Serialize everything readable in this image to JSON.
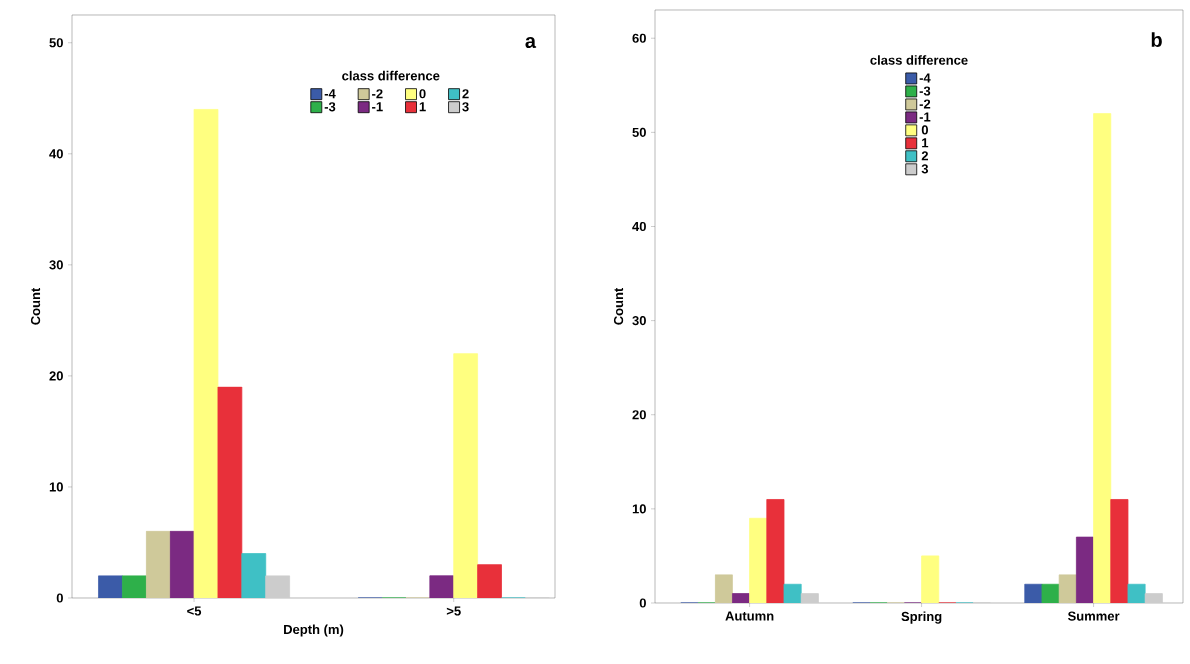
{
  "chart_data": [
    {
      "type": "bar",
      "annotations": [
        "a"
      ],
      "xlabel": "Depth (m)",
      "ylabel": "Count",
      "legend_title": "class difference",
      "legend": "top right",
      "categories": [
        "<5",
        ">5"
      ],
      "series": [
        {
          "name": "-4",
          "color": "#3b5ba8",
          "values": [
            2,
            0
          ]
        },
        {
          "name": "-3",
          "color": "#2eb04a",
          "values": [
            2,
            0
          ]
        },
        {
          "name": "-2",
          "color": "#cfc99a",
          "values": [
            6,
            0
          ]
        },
        {
          "name": "-1",
          "color": "#7b2a82",
          "values": [
            6,
            2
          ]
        },
        {
          "name": "0",
          "color": "#ffff80",
          "values": [
            44,
            22
          ]
        },
        {
          "name": "1",
          "color": "#e8303a",
          "values": [
            19,
            3
          ]
        },
        {
          "name": "2",
          "color": "#3fc0c5",
          "values": [
            4,
            0
          ]
        },
        {
          "name": "3",
          "color": "#cccccc",
          "values": [
            2,
            0
          ]
        }
      ],
      "ylim": [
        0,
        52.5
      ],
      "yticks": [
        0,
        10,
        20,
        30,
        40,
        50
      ],
      "grid": false
    },
    {
      "type": "bar",
      "annotations": [
        "b"
      ],
      "ylabel": "Count",
      "legend_title": "class difference",
      "legend": "top",
      "categories": [
        "Autumn",
        "Spring",
        "Summer"
      ],
      "series": [
        {
          "name": "-4",
          "color": "#3b5ba8",
          "values": [
            0,
            0,
            2
          ]
        },
        {
          "name": "-3",
          "color": "#2eb04a",
          "values": [
            0,
            0,
            2
          ]
        },
        {
          "name": "-2",
          "color": "#cfc99a",
          "values": [
            3,
            0,
            3
          ]
        },
        {
          "name": "-1",
          "color": "#7b2a82",
          "values": [
            1,
            0,
            7
          ]
        },
        {
          "name": "0",
          "color": "#ffff80",
          "values": [
            9,
            5,
            52
          ]
        },
        {
          "name": "1",
          "color": "#e8303a",
          "values": [
            11,
            0,
            11
          ]
        },
        {
          "name": "2",
          "color": "#3fc0c5",
          "values": [
            2,
            0,
            2
          ]
        },
        {
          "name": "3",
          "color": "#cccccc",
          "values": [
            1,
            0,
            1
          ]
        }
      ],
      "ylim": [
        0,
        63
      ],
      "yticks": [
        0,
        10,
        20,
        30,
        40,
        50,
        60
      ],
      "grid": false
    }
  ]
}
